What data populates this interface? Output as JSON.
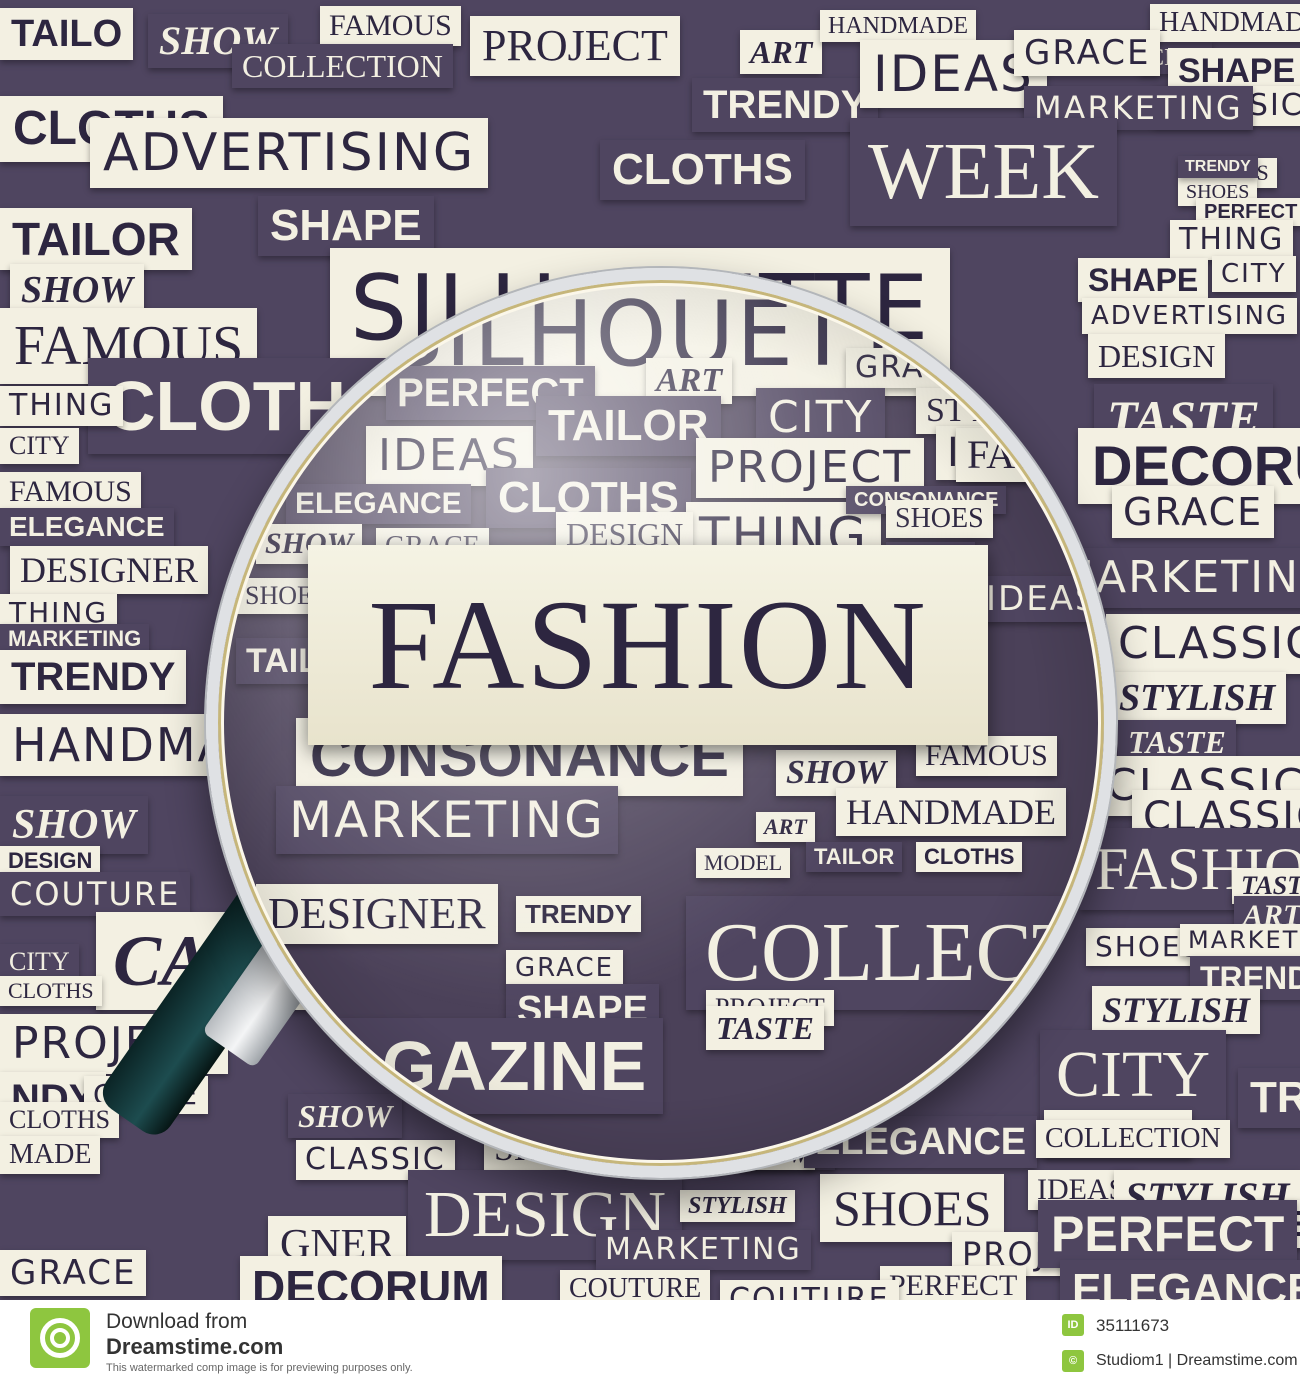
{
  "background_words": [
    {
      "text": "TAILO",
      "style": "sans",
      "dark": false
    },
    {
      "text": "SHOW",
      "style": "serif-bi",
      "dark": true
    },
    {
      "text": "FAMOUS",
      "style": "serif",
      "dark": false
    },
    {
      "text": "COLLECTION",
      "style": "serif",
      "dark": true
    },
    {
      "text": "PROJECT",
      "style": "serif",
      "dark": false
    },
    {
      "text": "ART",
      "style": "serif-bi",
      "dark": false
    },
    {
      "text": "HANDMADE",
      "style": "serif",
      "dark": false
    },
    {
      "text": "CITY",
      "style": "serif",
      "dark": true
    },
    {
      "text": "HANDMADE",
      "style": "serif",
      "dark": false
    },
    {
      "text": "CLOTHS",
      "style": "sans",
      "dark": false
    },
    {
      "text": "ADVERTISING",
      "style": "wide",
      "dark": false
    },
    {
      "text": "TRENDY",
      "style": "sans",
      "dark": true
    },
    {
      "text": "IDEAS",
      "style": "wide",
      "dark": false
    },
    {
      "text": "GRACE",
      "style": "wide",
      "dark": false
    },
    {
      "text": "SHAPE",
      "style": "sans",
      "dark": false
    },
    {
      "text": "CLASSIC",
      "style": "wide",
      "dark": false
    },
    {
      "text": "MARKETING",
      "style": "wide",
      "dark": true
    },
    {
      "text": "CLOTHS",
      "style": "sans",
      "dark": true
    },
    {
      "text": "WEEK",
      "style": "serif",
      "dark": true
    },
    {
      "text": "IDEAS",
      "style": "serif",
      "dark": false
    },
    {
      "text": "SHOES",
      "style": "serif",
      "dark": false
    },
    {
      "text": "TRENDY",
      "style": "sans",
      "dark": true
    },
    {
      "text": "PERFECT",
      "style": "sans",
      "dark": false
    },
    {
      "text": "TAILOR",
      "style": "sans",
      "dark": false
    },
    {
      "text": "SHAPE",
      "style": "sans",
      "dark": true
    },
    {
      "text": "THING",
      "style": "wide",
      "dark": false
    },
    {
      "text": "SHAPE",
      "style": "sans",
      "dark": false
    },
    {
      "text": "CITY",
      "style": "wide",
      "dark": false
    },
    {
      "text": "SILHOUETTE",
      "style": "wide",
      "dark": false
    },
    {
      "text": "ADVERTISING",
      "style": "wide",
      "dark": false
    },
    {
      "text": "SHOW",
      "style": "serif-bi",
      "dark": false
    },
    {
      "text": "FAMOUS",
      "style": "serif",
      "dark": false
    },
    {
      "text": "DESIGN",
      "style": "serif",
      "dark": false
    },
    {
      "text": "CLOTHS",
      "style": "sans",
      "dark": true
    },
    {
      "text": "TASTE",
      "style": "serif-bi",
      "dark": true
    },
    {
      "text": "THING",
      "style": "wide",
      "dark": false
    },
    {
      "text": "DECORUM",
      "style": "sans",
      "dark": false
    },
    {
      "text": "CITY",
      "style": "serif",
      "dark": false
    },
    {
      "text": "FAMOUS",
      "style": "serif",
      "dark": false
    },
    {
      "text": "GRACE",
      "style": "wide",
      "dark": false
    },
    {
      "text": "ELEGANCE",
      "style": "sans",
      "dark": true
    },
    {
      "text": "MARKETING",
      "style": "wide",
      "dark": true
    },
    {
      "text": "DESIGNER",
      "style": "serif",
      "dark": false
    },
    {
      "text": "THING",
      "style": "wide",
      "dark": false
    },
    {
      "text": "MARKETING",
      "style": "sans",
      "dark": true
    },
    {
      "text": "CLASSIC",
      "style": "wide",
      "dark": false
    },
    {
      "text": "TRENDY",
      "style": "sans",
      "dark": false
    },
    {
      "text": "STYLISH",
      "style": "serif-bi",
      "dark": false
    },
    {
      "text": "HANDMADE",
      "style": "wide",
      "dark": false
    },
    {
      "text": "TASTE",
      "style": "serif-bi",
      "dark": true
    },
    {
      "text": "CLASSIC",
      "style": "wide",
      "dark": false
    },
    {
      "text": "CLASSIC",
      "style": "wide",
      "dark": false
    },
    {
      "text": "SHOW",
      "style": "serif-bi",
      "dark": true
    },
    {
      "text": "DESIGN",
      "style": "sans",
      "dark": false
    },
    {
      "text": "COUTURE",
      "style": "wide",
      "dark": true
    },
    {
      "text": "HANDMADE",
      "style": "serif",
      "dark": false
    },
    {
      "text": "FASHION",
      "style": "serif",
      "dark": true
    },
    {
      "text": "TASTE",
      "style": "serif-bi",
      "dark": false
    },
    {
      "text": "ART",
      "style": "serif-bi",
      "dark": true
    },
    {
      "text": "GRACE",
      "style": "serif",
      "dark": false
    },
    {
      "text": "CATWALK",
      "style": "serif-bi",
      "dark": false
    },
    {
      "text": "CITY",
      "style": "serif",
      "dark": true
    },
    {
      "text": "CLOTHS",
      "style": "serif",
      "dark": false
    },
    {
      "text": "SHOES",
      "style": "wide",
      "dark": false
    },
    {
      "text": "MARKETING",
      "style": "wide",
      "dark": false
    },
    {
      "text": "TRENDY",
      "style": "sans",
      "dark": true
    },
    {
      "text": "STYLISH",
      "style": "serif-bi",
      "dark": false
    },
    {
      "text": "PROJECT",
      "style": "wide",
      "dark": false
    },
    {
      "text": "CITY",
      "style": "serif",
      "dark": true
    },
    {
      "text": "NDY",
      "style": "sans",
      "dark": false
    },
    {
      "text": "GRACE",
      "style": "wide",
      "dark": false
    },
    {
      "text": "TREND",
      "style": "sans",
      "dark": true
    },
    {
      "text": "CLOTHS",
      "style": "serif",
      "dark": false
    },
    {
      "text": "MADE",
      "style": "serif",
      "dark": false
    },
    {
      "text": "SHOW",
      "style": "serif-bi",
      "dark": true
    },
    {
      "text": "MODEL",
      "style": "serif",
      "dark": false
    },
    {
      "text": "CLASSIC",
      "style": "wide",
      "dark": false
    },
    {
      "text": "SHOES",
      "style": "serif",
      "dark": false
    },
    {
      "text": "CONSONANCE",
      "style": "sans",
      "dark": true
    },
    {
      "text": "SHOW",
      "style": "serif-bi",
      "dark": false
    },
    {
      "text": "ELEGANCE",
      "style": "sans",
      "dark": true
    },
    {
      "text": "COLLECTION",
      "style": "serif",
      "dark": false
    },
    {
      "text": "IDEAS",
      "style": "serif",
      "dark": false
    },
    {
      "text": "STYLISH",
      "style": "serif-bi",
      "dark": false
    },
    {
      "text": "SHOES",
      "style": "serif",
      "dark": false
    },
    {
      "text": "PERFECT",
      "style": "sans",
      "dark": false
    },
    {
      "text": "DESIGN",
      "style": "serif",
      "dark": true
    },
    {
      "text": "STYLISH",
      "style": "serif-bi",
      "dark": false
    },
    {
      "text": "GNER",
      "style": "serif",
      "dark": false
    },
    {
      "text": "MARKETING",
      "style": "wide",
      "dark": true
    },
    {
      "text": "PROJECT",
      "style": "wide",
      "dark": false
    },
    {
      "text": "PERFECT",
      "style": "sans",
      "dark": true
    },
    {
      "text": "DECORUM",
      "style": "sans",
      "dark": false
    },
    {
      "text": "COUTURE",
      "style": "serif",
      "dark": false
    },
    {
      "text": "PERFECT",
      "style": "serif",
      "dark": false
    },
    {
      "text": "ELEGANCE",
      "style": "sans",
      "dark": true
    },
    {
      "text": "GRACE",
      "style": "wide",
      "dark": false
    },
    {
      "text": "COUTURE",
      "style": "wide",
      "dark": false
    }
  ],
  "lens_words": [
    {
      "text": "SILHOUETTE",
      "style": "wide",
      "dark": false
    },
    {
      "text": "ELEGANCE",
      "style": "sans",
      "dark": true
    },
    {
      "text": "PERFECT",
      "style": "sans",
      "dark": true
    },
    {
      "text": "ART",
      "style": "serif-bi",
      "dark": false
    },
    {
      "text": "IDEAS",
      "style": "wide",
      "dark": false
    },
    {
      "text": "GRACE",
      "style": "wide",
      "dark": false
    },
    {
      "text": "CITY",
      "style": "wide",
      "dark": true
    },
    {
      "text": "STYLE",
      "style": "serif",
      "dark": false
    },
    {
      "text": "IDEAS",
      "style": "wide",
      "dark": false
    },
    {
      "text": "TAILOR",
      "style": "sans",
      "dark": true
    },
    {
      "text": "FAMOUS",
      "style": "serif",
      "dark": false
    },
    {
      "text": "PROJECT",
      "style": "wide",
      "dark": false
    },
    {
      "text": "ELEGANCE",
      "style": "sans",
      "dark": true
    },
    {
      "text": "CLOTHS",
      "style": "sans",
      "dark": true
    },
    {
      "text": "THING",
      "style": "wide",
      "dark": false
    },
    {
      "text": "CONSONANCE",
      "style": "sans",
      "dark": true
    },
    {
      "text": "DESIGN",
      "style": "serif",
      "dark": false
    },
    {
      "text": "SHOES",
      "style": "serif",
      "dark": false
    },
    {
      "text": "SHOW",
      "style": "serif-bi",
      "dark": false
    },
    {
      "text": "GRACE",
      "style": "serif",
      "dark": false
    },
    {
      "text": "TASTE",
      "style": "serif-bi",
      "dark": true
    },
    {
      "text": "SHOES",
      "style": "serif",
      "dark": false
    },
    {
      "text": "IDEAS",
      "style": "wide",
      "dark": true
    },
    {
      "text": "TAILOR",
      "style": "sans",
      "dark": true
    },
    {
      "text": "CONSONANCE",
      "style": "sans",
      "dark": false
    },
    {
      "text": "FAMOUS",
      "style": "serif",
      "dark": false
    },
    {
      "text": "SHOW",
      "style": "serif-bi",
      "dark": false
    },
    {
      "text": "MARKETING",
      "style": "wide",
      "dark": true
    },
    {
      "text": "ART",
      "style": "serif-bi",
      "dark": false
    },
    {
      "text": "HANDMADE",
      "style": "serif",
      "dark": false
    },
    {
      "text": "MODEL",
      "style": "serif",
      "dark": false
    },
    {
      "text": "TAILOR",
      "style": "sans",
      "dark": true
    },
    {
      "text": "CLOTHS",
      "style": "sans",
      "dark": false
    },
    {
      "text": "DESIGNER",
      "style": "serif",
      "dark": false
    },
    {
      "text": "TRENDY",
      "style": "sans",
      "dark": false
    },
    {
      "text": "GRACE",
      "style": "wide",
      "dark": false
    },
    {
      "text": "SHAPE",
      "style": "sans",
      "dark": true
    },
    {
      "text": "COLLECTION",
      "style": "serif",
      "dark": true
    },
    {
      "text": "PROJECT",
      "style": "serif",
      "dark": false
    },
    {
      "text": "TASTE",
      "style": "serif-bi",
      "dark": false
    },
    {
      "text": "MAGAZINE",
      "style": "sans",
      "dark": true
    }
  ],
  "focus_word": "FASHION",
  "colors": {
    "paper": "#f3f0e2",
    "ink": "#2d2640",
    "purple": "#4f4560",
    "brand_green": "#8ec63f"
  },
  "footer": {
    "logo_icon": "dreamstime-swirl-icon",
    "download_text": "Download from",
    "site_name": "Dreamstime.com",
    "note": "This watermarked comp image is for previewing purposes only.",
    "id_badge": "ID",
    "id_value": "35111673",
    "copyright_badge": "©",
    "credit": "Studiom1 | Dreamstime.com"
  }
}
